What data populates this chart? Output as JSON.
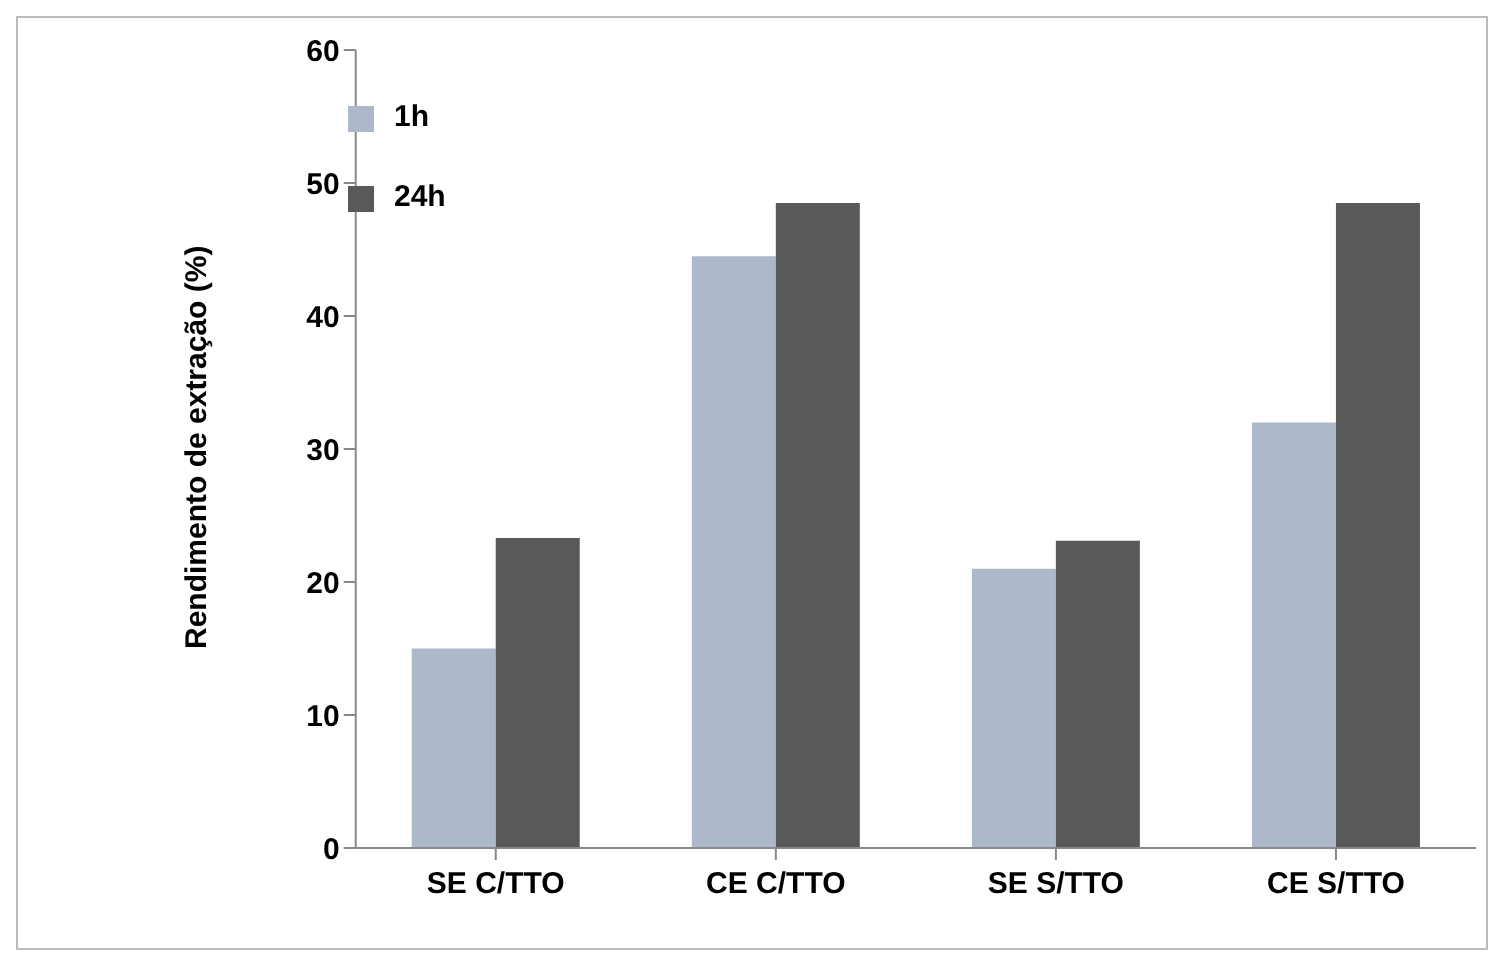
{
  "chart_data": {
    "type": "bar",
    "ylabel": "Rendimento de extração (%)",
    "categories": [
      "SE C/TTO",
      "CE C/TTO",
      "SE S/TTO",
      "CE S/TTO"
    ],
    "series": [
      {
        "name": "1h",
        "color": "#adb9ca",
        "values": [
          15,
          44.5,
          21,
          32
        ]
      },
      {
        "name": "24h",
        "color": "#595959",
        "values": [
          23.3,
          48.5,
          23.1,
          48.5
        ]
      }
    ],
    "ylim": [
      0,
      60
    ],
    "yticks": [
      0,
      10,
      20,
      30,
      40,
      50,
      60
    ],
    "grid": false,
    "legend": "top left"
  }
}
